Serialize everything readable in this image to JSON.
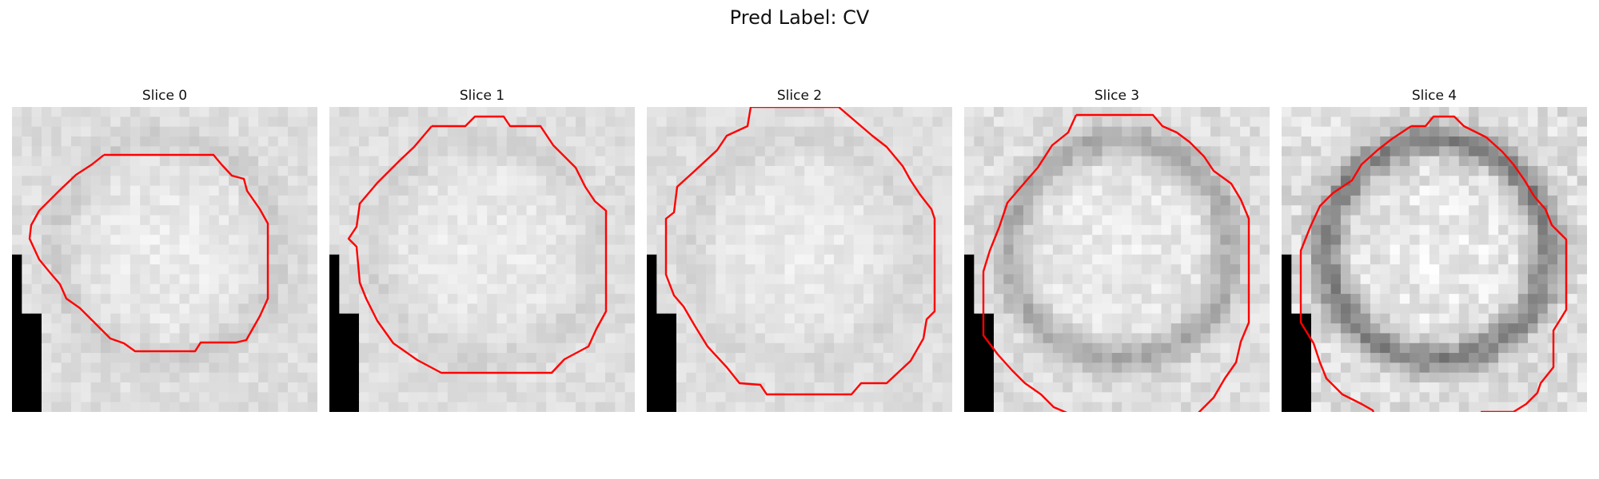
{
  "figure": {
    "title": "Pred Label: CV"
  },
  "panels": [
    {
      "title": "Slice 0",
      "ring": 0.08,
      "center": 0.96,
      "black_col": 0.88
    },
    {
      "title": "Slice 1",
      "ring": 0.06,
      "center": 0.95,
      "black_col": 0.88
    },
    {
      "title": "Slice 2",
      "ring": 0.05,
      "center": 0.95,
      "black_col": 0.88
    },
    {
      "title": "Slice 3",
      "ring": 0.22,
      "center": 0.9,
      "black_col": 0.88
    },
    {
      "title": "Slice 4",
      "ring": 0.38,
      "center": 0.86,
      "black_col": 0.88
    }
  ],
  "colors": {
    "contour": "#ff0000",
    "background_light": "#eeeeee",
    "mask": "#000000"
  }
}
